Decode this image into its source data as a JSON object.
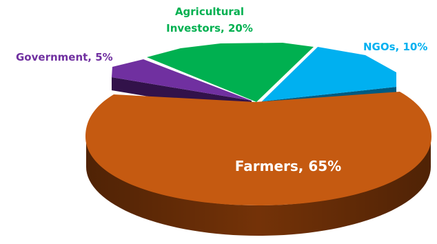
{
  "chart_data": {
    "type": "pie",
    "style": "3d-exploded",
    "slices": [
      {
        "name": "Farmers",
        "value": 65,
        "label": "Farmers, 65%",
        "color": "#c55a11",
        "label_color": "#ffffff"
      },
      {
        "name": "Government",
        "value": 5,
        "label": "Government, 5%",
        "color": "#7030a0",
        "label_color": "#7030a0"
      },
      {
        "name": "Agricultural Investors",
        "value": 20,
        "label_lines": [
          "Agricultural",
          "Investors, 20%"
        ],
        "color": "#00b050",
        "label_color": "#00b050"
      },
      {
        "name": "NGOs",
        "value": 10,
        "label": "NGOs, 10%",
        "color": "#00b0f0",
        "label_color": "#00b0f0"
      }
    ]
  }
}
